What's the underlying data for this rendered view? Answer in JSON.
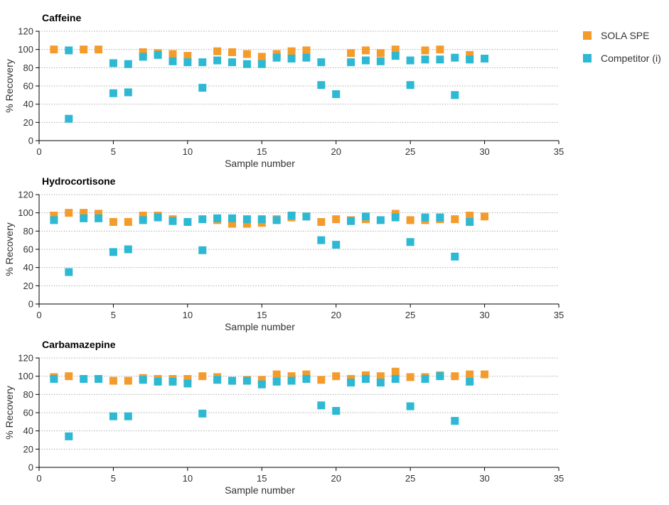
{
  "colors": {
    "sola": "#f39c2c",
    "competitor": "#2db9d3",
    "axis": "#000000",
    "grid": "#9a9a9a",
    "text": "#333333"
  },
  "legend": {
    "sola_label": "SOLA SPE",
    "competitor_label": "Competitor (i)"
  },
  "chart_data": [
    {
      "type": "scatter",
      "title": "Caffeine",
      "xlabel": "Sample number",
      "ylabel": "% Recovery",
      "xlim": [
        0,
        35
      ],
      "ylim": [
        0,
        120
      ],
      "xticks": [
        0,
        5,
        10,
        15,
        20,
        25,
        30,
        35
      ],
      "yticks": [
        0,
        20,
        40,
        60,
        80,
        100,
        120
      ],
      "grid": "horizontal dotted",
      "legend_position": "right",
      "series": [
        {
          "name": "SOLA SPE",
          "color": "sola",
          "points": [
            [
              1,
              100
            ],
            [
              3,
              100
            ],
            [
              4,
              100
            ],
            [
              7,
              97
            ],
            [
              8,
              96
            ],
            [
              9,
              95
            ],
            [
              10,
              93
            ],
            [
              12,
              98
            ],
            [
              13,
              97
            ],
            [
              14,
              95
            ],
            [
              15,
              92
            ],
            [
              16,
              95
            ],
            [
              17,
              98
            ],
            [
              18,
              99
            ],
            [
              21,
              96
            ],
            [
              22,
              99
            ],
            [
              23,
              96
            ],
            [
              24,
              100
            ],
            [
              26,
              99
            ],
            [
              27,
              100
            ],
            [
              29,
              94
            ]
          ]
        },
        {
          "name": "Competitor (i)",
          "color": "competitor",
          "points": [
            [
              2,
              24
            ],
            [
              2,
              99
            ],
            [
              5,
              52
            ],
            [
              5,
              85
            ],
            [
              6,
              53
            ],
            [
              6,
              84
            ],
            [
              7,
              92
            ],
            [
              8,
              94
            ],
            [
              9,
              87
            ],
            [
              10,
              86
            ],
            [
              11,
              58
            ],
            [
              11,
              86
            ],
            [
              12,
              88
            ],
            [
              13,
              86
            ],
            [
              14,
              84
            ],
            [
              15,
              84
            ],
            [
              16,
              91
            ],
            [
              17,
              90
            ],
            [
              18,
              91
            ],
            [
              19,
              61
            ],
            [
              19,
              86
            ],
            [
              20,
              51
            ],
            [
              21,
              86
            ],
            [
              22,
              88
            ],
            [
              23,
              87
            ],
            [
              24,
              93
            ],
            [
              25,
              61
            ],
            [
              25,
              88
            ],
            [
              26,
              89
            ],
            [
              27,
              89
            ],
            [
              28,
              50
            ],
            [
              28,
              91
            ],
            [
              29,
              89
            ],
            [
              30,
              90
            ]
          ]
        }
      ]
    },
    {
      "type": "scatter",
      "title": "Hydrocortisone",
      "xlabel": "Sample number",
      "ylabel": "% Recovery",
      "xlim": [
        0,
        35
      ],
      "ylim": [
        0,
        120
      ],
      "xticks": [
        0,
        5,
        10,
        15,
        20,
        25,
        30,
        35
      ],
      "yticks": [
        0,
        20,
        40,
        60,
        80,
        100,
        120
      ],
      "grid": "horizontal dotted",
      "series": [
        {
          "name": "SOLA SPE",
          "color": "sola",
          "points": [
            [
              1,
              97
            ],
            [
              2,
              100
            ],
            [
              3,
              100
            ],
            [
              4,
              99
            ],
            [
              5,
              90
            ],
            [
              6,
              90
            ],
            [
              7,
              97
            ],
            [
              8,
              97
            ],
            [
              9,
              93
            ],
            [
              12,
              92
            ],
            [
              13,
              88
            ],
            [
              14,
              88
            ],
            [
              15,
              89
            ],
            [
              16,
              93
            ],
            [
              17,
              95
            ],
            [
              18,
              96
            ],
            [
              19,
              90
            ],
            [
              20,
              93
            ],
            [
              21,
              92
            ],
            [
              22,
              93
            ],
            [
              24,
              99
            ],
            [
              25,
              92
            ],
            [
              26,
              92
            ],
            [
              27,
              93
            ],
            [
              28,
              93
            ],
            [
              29,
              97
            ],
            [
              30,
              96
            ]
          ]
        },
        {
          "name": "Competitor (i)",
          "color": "competitor",
          "points": [
            [
              1,
              92
            ],
            [
              2,
              35
            ],
            [
              3,
              94
            ],
            [
              4,
              94
            ],
            [
              5,
              57
            ],
            [
              6,
              60
            ],
            [
              7,
              92
            ],
            [
              8,
              95
            ],
            [
              9,
              91
            ],
            [
              10,
              90
            ],
            [
              11,
              59
            ],
            [
              11,
              93
            ],
            [
              12,
              94
            ],
            [
              13,
              94
            ],
            [
              14,
              93
            ],
            [
              15,
              93
            ],
            [
              16,
              92
            ],
            [
              17,
              97
            ],
            [
              18,
              96
            ],
            [
              19,
              70
            ],
            [
              20,
              65
            ],
            [
              21,
              91
            ],
            [
              22,
              96
            ],
            [
              23,
              92
            ],
            [
              24,
              95
            ],
            [
              25,
              68
            ],
            [
              26,
              95
            ],
            [
              27,
              95
            ],
            [
              28,
              52
            ],
            [
              29,
              90
            ]
          ]
        }
      ]
    },
    {
      "type": "scatter",
      "title": "Carbamazepine",
      "xlabel": "Sample number",
      "ylabel": "% Recovery",
      "xlim": [
        0,
        35
      ],
      "ylim": [
        0,
        120
      ],
      "xticks": [
        0,
        5,
        10,
        15,
        20,
        25,
        30,
        35
      ],
      "yticks": [
        0,
        20,
        40,
        60,
        80,
        100,
        120
      ],
      "grid": "horizontal dotted",
      "series": [
        {
          "name": "SOLA SPE",
          "color": "sola",
          "points": [
            [
              1,
              99
            ],
            [
              2,
              100
            ],
            [
              5,
              95
            ],
            [
              6,
              95
            ],
            [
              7,
              98
            ],
            [
              8,
              97
            ],
            [
              9,
              97
            ],
            [
              10,
              97
            ],
            [
              11,
              100
            ],
            [
              12,
              99
            ],
            [
              13,
              95
            ],
            [
              14,
              96
            ],
            [
              15,
              96
            ],
            [
              16,
              102
            ],
            [
              17,
              100
            ],
            [
              18,
              102
            ],
            [
              19,
              96
            ],
            [
              20,
              100
            ],
            [
              21,
              97
            ],
            [
              22,
              101
            ],
            [
              23,
              100
            ],
            [
              24,
              105
            ],
            [
              25,
              99
            ],
            [
              26,
              99
            ],
            [
              27,
              101
            ],
            [
              28,
              100
            ],
            [
              29,
              102
            ],
            [
              30,
              102
            ]
          ]
        },
        {
          "name": "Competitor (i)",
          "color": "competitor",
          "points": [
            [
              1,
              97
            ],
            [
              2,
              34
            ],
            [
              3,
              97
            ],
            [
              4,
              97
            ],
            [
              5,
              56
            ],
            [
              6,
              56
            ],
            [
              7,
              96
            ],
            [
              8,
              94
            ],
            [
              9,
              94
            ],
            [
              10,
              92
            ],
            [
              11,
              59
            ],
            [
              12,
              96
            ],
            [
              13,
              95
            ],
            [
              14,
              95
            ],
            [
              15,
              91
            ],
            [
              16,
              94
            ],
            [
              17,
              95
            ],
            [
              18,
              97
            ],
            [
              19,
              68
            ],
            [
              20,
              62
            ],
            [
              21,
              93
            ],
            [
              22,
              97
            ],
            [
              23,
              93
            ],
            [
              24,
              97
            ],
            [
              25,
              67
            ],
            [
              26,
              97
            ],
            [
              27,
              100
            ],
            [
              28,
              51
            ],
            [
              29,
              94
            ]
          ]
        }
      ]
    }
  ]
}
